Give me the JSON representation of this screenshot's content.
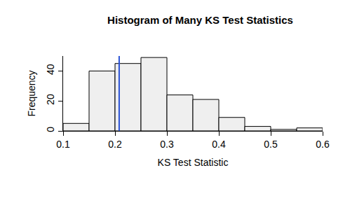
{
  "chart_data": {
    "type": "histogram",
    "title": "Histogram of Many KS Test Statistics",
    "x_label": "KS Test Statistic",
    "y_label": "Frequency",
    "bins": [
      0.1,
      0.15,
      0.2,
      0.25,
      0.3,
      0.35,
      0.4,
      0.45,
      0.5,
      0.55,
      0.6
    ],
    "values": [
      5,
      40,
      45,
      49,
      24,
      21,
      9,
      3,
      1,
      2
    ],
    "color": "#efefef",
    "xlim": [
      0.1,
      0.6
    ],
    "xticks": [
      0.1,
      0.2,
      0.3,
      0.4,
      0.5,
      0.6
    ],
    "ylim": [
      0,
      50
    ],
    "yticks": [
      0,
      20,
      40
    ],
    "grid": false,
    "reference_line": {
      "x": 0.208,
      "color": "#2a52d6"
    }
  }
}
